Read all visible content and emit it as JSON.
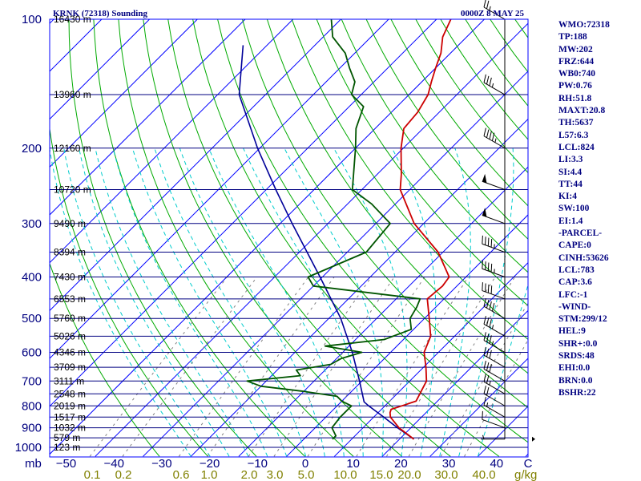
{
  "header": {
    "station": "KRNK (72318) Sounding",
    "time": "0000Z  8 MAY 25"
  },
  "indices": [
    "WMO:72318",
    "TP:188",
    "MW:202",
    "FRZ:644",
    "WB0:740",
    "PW:0.76",
    "RH:51.8",
    "MAXT:20.8",
    "TH:5637",
    "L57:6.3",
    "LCL:824",
    "LI:3.3",
    "SI:4.4",
    "TT:44",
    "KI:4",
    "SW:100",
    "EI:1.4",
    "-PARCEL-",
    "CAPE:0",
    "CINH:53626",
    "LCL:783",
    "CAP:3.6",
    "LFC:-1",
    "-WIND-",
    "STM:299/12",
    "HEL:9",
    "SHR+:0.0",
    "SRDS:48",
    "EHI:0.0",
    "BRN:0.0",
    "BSHR:22"
  ],
  "colors": {
    "frame": "#0000ff",
    "isobar": "#000080",
    "isotherm": "#0000ff",
    "dry_adiabat": "#00aa00",
    "moist_adiabat": "#00cccc",
    "mixing_ratio": "#808080",
    "temperature": "#cc0000",
    "dewpoint": "#005500",
    "parcel": "#000099",
    "wind": "#000000"
  },
  "chart_data": {
    "type": "skew-t",
    "title": "KRNK (72318) Sounding",
    "pressure_unit": "mb",
    "temperature_unit": "C",
    "mixing_ratio_unit": "g/kg",
    "pressure_labels": [
      100,
      200,
      300,
      400,
      500,
      600,
      700,
      800,
      900,
      1000
    ],
    "temperature_ticks": [
      -50,
      -40,
      -30,
      -20,
      -10,
      0,
      10,
      20,
      30,
      40
    ],
    "temperature_tick_text": [
      "−50",
      "−40",
      "−30",
      "−20",
      "−10",
      "0",
      "10",
      "20",
      "30",
      "40"
    ],
    "mixing_ratio_labels": [
      "0.1",
      "0.2",
      "0.6",
      "1.0",
      "2.0",
      "3.0",
      "5.0",
      "10.0",
      "15.0",
      "20.0",
      "30.0",
      "40.0"
    ],
    "height_levels": [
      {
        "p": 100,
        "label": "16430 m"
      },
      {
        "p": 150,
        "label": "13960 m"
      },
      {
        "p": 200,
        "label": "12160 m"
      },
      {
        "p": 250,
        "label": "10720 m"
      },
      {
        "p": 300,
        "label": "9490 m"
      },
      {
        "p": 350,
        "label": "8394 m"
      },
      {
        "p": 400,
        "label": "7430 m"
      },
      {
        "p": 450,
        "label": "6553 m"
      },
      {
        "p": 500,
        "label": "5760 m"
      },
      {
        "p": 550,
        "label": "5026 m"
      },
      {
        "p": 600,
        "label": "4346 m"
      },
      {
        "p": 650,
        "label": "3709 m"
      },
      {
        "p": 700,
        "label": "3111 m"
      },
      {
        "p": 750,
        "label": "2548 m"
      },
      {
        "p": 800,
        "label": "2019 m"
      },
      {
        "p": 850,
        "label": "1517 m"
      },
      {
        "p": 900,
        "label": "1032 m"
      },
      {
        "p": 950,
        "label": "579 m"
      },
      {
        "p": 1000,
        "label": "123 m"
      }
    ],
    "temperature": [
      [
        957,
        23.0
      ],
      [
        900,
        17.5
      ],
      [
        850,
        13.5
      ],
      [
        830,
        12.5
      ],
      [
        815,
        12.0
      ],
      [
        800,
        13.5
      ],
      [
        780,
        15.5
      ],
      [
        700,
        13.5
      ],
      [
        650,
        10.5
      ],
      [
        600,
        7.0
      ],
      [
        550,
        5.0
      ],
      [
        500,
        1.0
      ],
      [
        450,
        -3.5
      ],
      [
        420,
        -3.0
      ],
      [
        400,
        -3.5
      ],
      [
        350,
        -11.0
      ],
      [
        300,
        -22.0
      ],
      [
        250,
        -32.0
      ],
      [
        230,
        -35.0
      ],
      [
        200,
        -40.5
      ],
      [
        180,
        -44.0
      ],
      [
        165,
        -44.5
      ],
      [
        150,
        -46.0
      ],
      [
        140,
        -48.0
      ],
      [
        130,
        -50.0
      ],
      [
        120,
        -52.0
      ],
      [
        110,
        -55.0
      ],
      [
        100,
        -57.0
      ]
    ],
    "dewpoint": [
      [
        957,
        6.0
      ],
      [
        940,
        6.0
      ],
      [
        900,
        3.5
      ],
      [
        850,
        3.0
      ],
      [
        800,
        3.0
      ],
      [
        780,
        0.0
      ],
      [
        760,
        -2.0
      ],
      [
        740,
        -10.0
      ],
      [
        720,
        -20.0
      ],
      [
        700,
        -24.0
      ],
      [
        680,
        -14.0
      ],
      [
        660,
        -16.0
      ],
      [
        640,
        -10.0
      ],
      [
        620,
        -9.0
      ],
      [
        600,
        -6.0
      ],
      [
        580,
        -15.0
      ],
      [
        560,
        -4.0
      ],
      [
        530,
        -0.5
      ],
      [
        500,
        -3.0
      ],
      [
        470,
        -4.0
      ],
      [
        450,
        -5.0
      ],
      [
        420,
        -30.0
      ],
      [
        400,
        -33.0
      ],
      [
        350,
        -26.0
      ],
      [
        300,
        -27.0
      ],
      [
        270,
        -35.0
      ],
      [
        250,
        -42.0
      ],
      [
        200,
        -50.0
      ],
      [
        180,
        -54.0
      ],
      [
        160,
        -57.0
      ],
      [
        150,
        -62.0
      ],
      [
        140,
        -64.0
      ],
      [
        130,
        -68.0
      ],
      [
        120,
        -72.0
      ],
      [
        110,
        -78.0
      ],
      [
        100,
        -82.0
      ]
    ],
    "parcel": [
      [
        957,
        23.0
      ],
      [
        900,
        17.2
      ],
      [
        850,
        12.1
      ],
      [
        800,
        6.6
      ],
      [
        783,
        4.8
      ],
      [
        700,
        -0.5
      ],
      [
        600,
        -8.0
      ],
      [
        500,
        -17.5
      ],
      [
        400,
        -30.5
      ],
      [
        300,
        -47.5
      ],
      [
        250,
        -58.0
      ],
      [
        200,
        -70.5
      ],
      [
        150,
        -85.5
      ],
      [
        115,
        -95.0
      ]
    ],
    "wind_barbs": [
      {
        "p": 957,
        "dir": 270,
        "kt": 5
      },
      {
        "p": 900,
        "dir": 290,
        "kt": 10
      },
      {
        "p": 850,
        "dir": 300,
        "kt": 15
      },
      {
        "p": 800,
        "dir": 300,
        "kt": 20
      },
      {
        "p": 750,
        "dir": 300,
        "kt": 25
      },
      {
        "p": 700,
        "dir": 300,
        "kt": 30
      },
      {
        "p": 650,
        "dir": 300,
        "kt": 30
      },
      {
        "p": 600,
        "dir": 300,
        "kt": 35
      },
      {
        "p": 550,
        "dir": 300,
        "kt": 35
      },
      {
        "p": 500,
        "dir": 300,
        "kt": 40
      },
      {
        "p": 450,
        "dir": 290,
        "kt": 40
      },
      {
        "p": 400,
        "dir": 290,
        "kt": 45
      },
      {
        "p": 350,
        "dir": 290,
        "kt": 45
      },
      {
        "p": 300,
        "dir": 290,
        "kt": 50
      },
      {
        "p": 250,
        "dir": 290,
        "kt": 50
      },
      {
        "p": 200,
        "dir": 300,
        "kt": 45
      },
      {
        "p": 150,
        "dir": 300,
        "kt": 35
      },
      {
        "p": 100,
        "dir": 300,
        "kt": 25
      }
    ]
  }
}
